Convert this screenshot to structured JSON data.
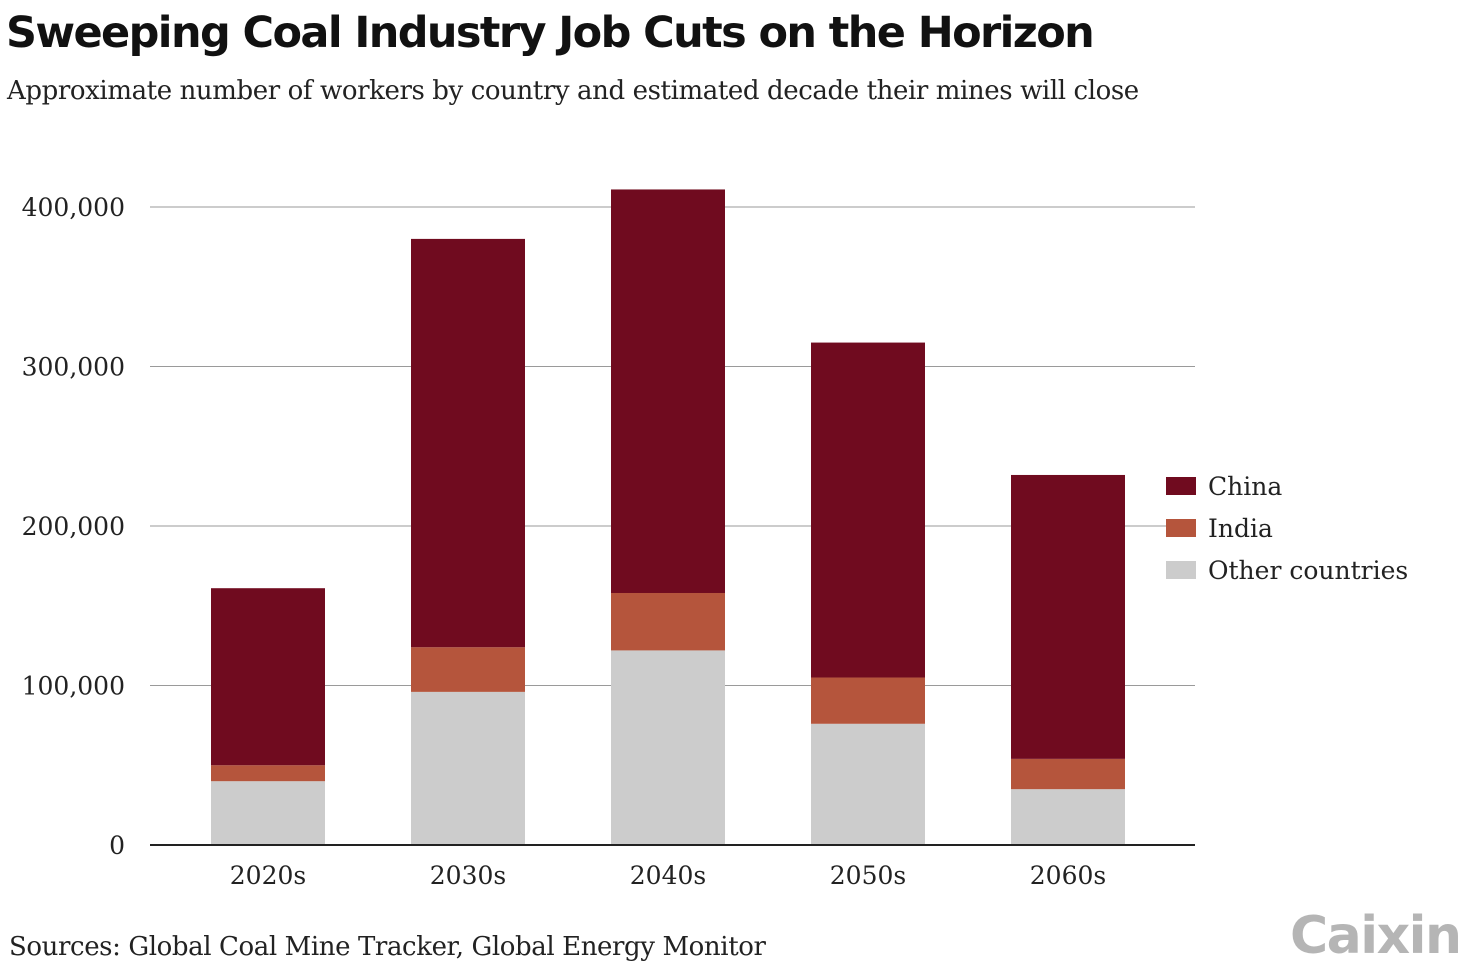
{
  "header": {
    "title": "Sweeping Coal Industry Job Cuts on the Horizon",
    "subtitle": "Approximate number of workers by country and estimated decade their mines will close"
  },
  "footer": {
    "source": "Sources: Global Coal Mine Tracker, Global Energy Monitor",
    "logo_text": "Caixin"
  },
  "chart_data": {
    "type": "bar",
    "stacked": true,
    "categories": [
      "2020s",
      "2030s",
      "2040s",
      "2050s",
      "2060s"
    ],
    "series": [
      {
        "name": "Other countries",
        "color": "#cccccc",
        "values": [
          40000,
          96000,
          122000,
          76000,
          35000
        ]
      },
      {
        "name": "India",
        "color": "#b5553c",
        "values": [
          10000,
          28000,
          36000,
          29000,
          19000
        ]
      },
      {
        "name": "China",
        "color": "#700b1f",
        "values": [
          111000,
          256000,
          253000,
          210000,
          178000
        ]
      }
    ],
    "legend_order": [
      "China",
      "India",
      "Other countries"
    ],
    "legend_position": "right",
    "ylim": [
      0,
      400000
    ],
    "yticks": [
      0,
      100000,
      200000,
      300000,
      400000
    ],
    "ytick_labels": [
      "0",
      "100,000",
      "200,000",
      "300,000",
      "400,000"
    ],
    "grid": true
  }
}
